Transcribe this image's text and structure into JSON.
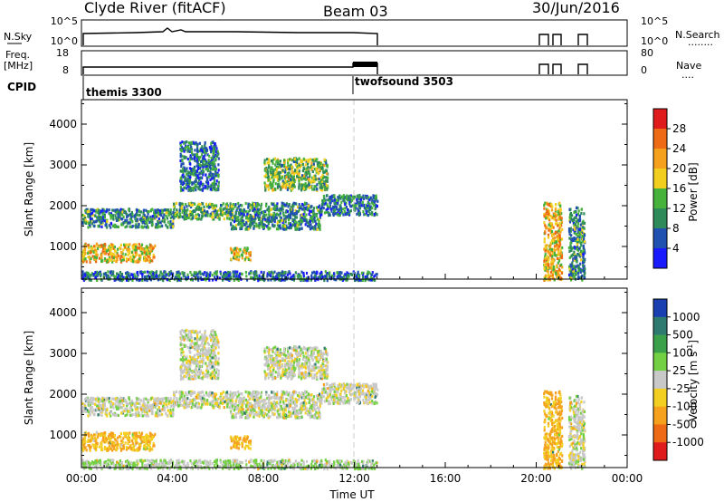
{
  "header": {
    "radar": "Clyde River (fitACF)",
    "beam": "Beam 03",
    "date": "30/Jun/2016"
  },
  "strip_labels": {
    "nsky": "N.Sky",
    "nsearch": "N.Search",
    "nsearch_dots": "........",
    "freq_line1": "Freq.",
    "freq_line2": "[MHz]",
    "nave": "Nave",
    "nave_dots": "....",
    "cpid": "CPID",
    "nsky_ticks": [
      "10^5",
      "10^0"
    ],
    "nsearch_ticks": [
      "10^5",
      "10^0"
    ],
    "freq_ticks": [
      "18",
      "8"
    ],
    "nave_ticks": [
      "80",
      "0"
    ]
  },
  "cpid_labels": [
    "themis 3300",
    "twofsound 3503"
  ],
  "x_axis": {
    "label": "Time UT",
    "ticks": [
      "00:00",
      "04:00",
      "08:00",
      "12:00",
      "16:00",
      "20:00",
      "00:00"
    ]
  },
  "y_axis": {
    "label": "Slant Range [km]",
    "ticks": [
      "1000",
      "2000",
      "3000",
      "4000"
    ]
  },
  "power_colorbar": {
    "label": "Power [dB]",
    "ticks": [
      "4",
      "8",
      "12",
      "16",
      "20",
      "24",
      "28"
    ],
    "colors": [
      "#1a1aff",
      "#2050b0",
      "#2f8a5a",
      "#46b23c",
      "#f2cf1f",
      "#f5a11e",
      "#ee6a14",
      "#e01b1b"
    ]
  },
  "velocity_colorbar": {
    "label": "Velocity [m s",
    "label_sup": "-1",
    "label_close": "]",
    "ticks": [
      "1000",
      "500",
      "100",
      "25",
      "-25",
      "-100",
      "-500",
      "-1000"
    ],
    "colors": [
      "#1a3fb0",
      "#2f7a70",
      "#3aa04a",
      "#74d043",
      "#c8c8c8",
      "#f3cf22",
      "#f5a11e",
      "#ee6a14",
      "#e01b1b"
    ]
  },
  "chart_data": {
    "type": "heatmap",
    "x_range_hours": [
      0,
      24
    ],
    "y_range_km": [
      200,
      4600
    ],
    "mode_change_hour": 12.0,
    "observation_blocks_hours": [
      [
        0,
        13.1
      ],
      [
        20.3,
        21.1
      ],
      [
        21.4,
        22.1
      ],
      [
        22.5,
        22.9
      ]
    ],
    "echo_regions": [
      {
        "t0": 0.0,
        "t1": 3.2,
        "r0": 650,
        "r1": 1100,
        "power": 20,
        "velocity": -100
      },
      {
        "t0": 0.0,
        "t1": 4.0,
        "r0": 1500,
        "r1": 1950,
        "power": 10,
        "velocity": 0
      },
      {
        "t0": 4.0,
        "t1": 6.5,
        "r0": 1700,
        "r1": 2100,
        "power": 12,
        "velocity": 0
      },
      {
        "t0": 6.5,
        "t1": 10.5,
        "r0": 1450,
        "r1": 2100,
        "power": 10,
        "velocity": 0
      },
      {
        "t0": 10.5,
        "t1": 13.0,
        "r0": 1800,
        "r1": 2300,
        "power": 9,
        "velocity": 0
      },
      {
        "t0": 4.3,
        "t1": 6.0,
        "r0": 2400,
        "r1": 3600,
        "power": 8,
        "velocity": 0
      },
      {
        "t0": 8.0,
        "t1": 10.8,
        "r0": 2400,
        "r1": 3200,
        "power": 14,
        "velocity": 0
      },
      {
        "t0": 6.5,
        "t1": 7.4,
        "r0": 700,
        "r1": 1000,
        "power": 18,
        "velocity": -100
      },
      {
        "t0": 0.0,
        "t1": 13.0,
        "r0": 200,
        "r1": 420,
        "power": 8,
        "velocity": 25
      },
      {
        "t0": 20.3,
        "t1": 21.1,
        "r0": 200,
        "r1": 2100,
        "power": 20,
        "velocity": -100
      },
      {
        "t0": 21.4,
        "t1": 22.1,
        "r0": 200,
        "r1": 2000,
        "power": 10,
        "velocity": 0
      }
    ]
  }
}
